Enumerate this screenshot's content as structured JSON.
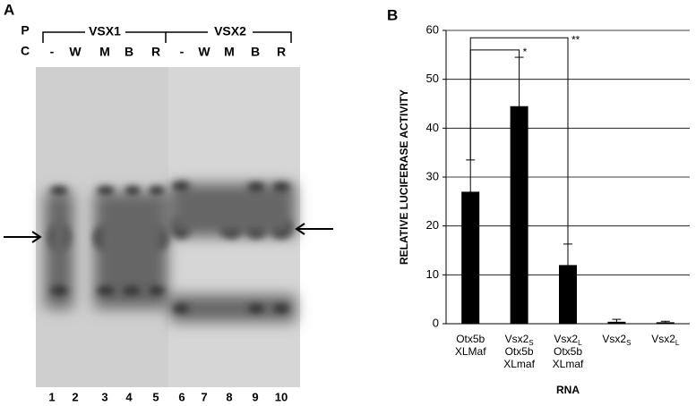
{
  "panel_a": {
    "label": "A",
    "row_p": "P",
    "row_c": "C",
    "group_1": "VSX1",
    "group_2": "VSX2",
    "lanes": [
      "-",
      "W",
      "M",
      "B",
      "R",
      "-",
      "W",
      "M",
      "B",
      "R"
    ],
    "lane_numbers": [
      "1",
      "2",
      "3",
      "4",
      "5",
      "6",
      "7",
      "8",
      "9",
      "10"
    ]
  },
  "chart_data": {
    "type": "bar",
    "panel_label": "B",
    "ylabel": "RELATIVE LUCIFERASE ACTIVITY",
    "xlabel": "RNA",
    "categories": [
      [
        {
          "base": "Otx5b"
        },
        {
          "base": "XLMaf"
        }
      ],
      [
        {
          "base": "Vsx2",
          "sub": "S"
        },
        {
          "base": "Otx5b"
        },
        {
          "base": "XLmaf"
        }
      ],
      [
        {
          "base": "Vsx2",
          "sub": "L"
        },
        {
          "base": "Otx5b"
        },
        {
          "base": "XLmaf"
        }
      ],
      [
        {
          "base": "Vsx2",
          "sub": "S"
        }
      ],
      [
        {
          "base": "Vsx2",
          "sub": "L"
        }
      ]
    ],
    "values": [
      27,
      44.5,
      12,
      0.4,
      0.3
    ],
    "errors": [
      6.5,
      10,
      4.3,
      0.5,
      0.2
    ],
    "color": "#000000",
    "ylim": [
      0,
      60
    ],
    "yticks": [
      0,
      10,
      20,
      30,
      40,
      50,
      60
    ],
    "grid": true,
    "significance": [
      {
        "from": 0,
        "to": 1,
        "y": 56,
        "label": "*"
      },
      {
        "from": 0,
        "to": 2,
        "y": 58.5,
        "label": "**"
      }
    ]
  }
}
